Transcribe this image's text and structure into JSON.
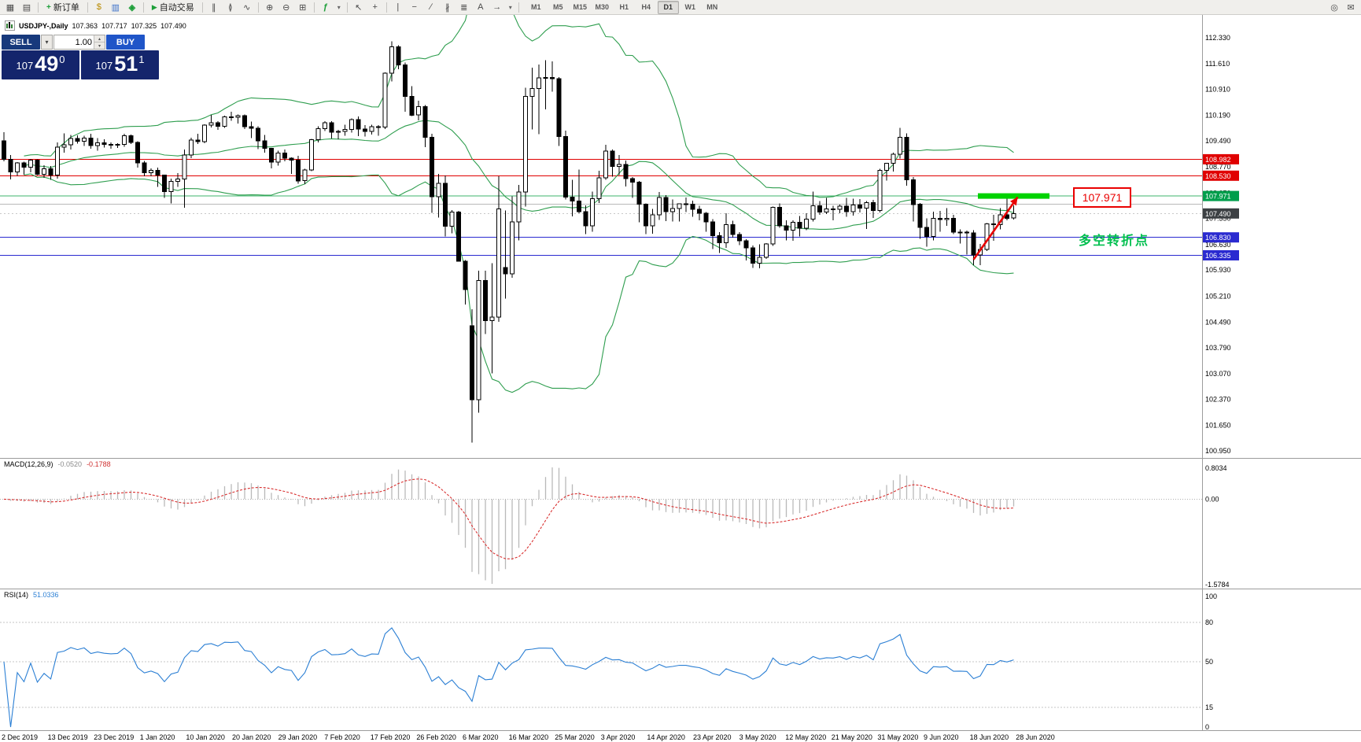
{
  "toolbar": {
    "new_order_label": "新订单",
    "autotrading_label": "自动交易",
    "timeframes": [
      "M1",
      "M5",
      "M15",
      "M30",
      "H1",
      "H4",
      "D1",
      "W1",
      "MN"
    ],
    "active_timeframe": "D1",
    "icons": {
      "new_chart": "▦",
      "profiles": "▤",
      "new_order_plus": "+",
      "market_watch": "$",
      "data_window": "▥",
      "navigator": "◈",
      "autotrading_play": "▶",
      "bar_chart": "∥",
      "candle_chart": "≬",
      "line_chart": "∿",
      "zoom_in": "⊕",
      "zoom_out": "⊖",
      "tile_windows": "⊞",
      "indicators": "ƒ",
      "caret": "▾",
      "cursor": "↖",
      "crosshair": "+",
      "vertical_line": "|",
      "horizontal_line": "−",
      "trendline": "∕",
      "channel": "∦",
      "fibonacci": "≣",
      "text": "A",
      "arrows": "→",
      "search": "◎",
      "feedback": "✉",
      "spin_up": "▴",
      "spin_down": "▾"
    }
  },
  "chart_header": {
    "symbol": "USDJPY-,Daily",
    "open": "107.363",
    "high": "107.717",
    "low": "107.325",
    "close": "107.490"
  },
  "trade_panel": {
    "sell_label": "SELL",
    "buy_label": "BUY",
    "lot_value": "1.00",
    "sell_price": {
      "small": "107",
      "big": "49",
      "sup": "0"
    },
    "buy_price": {
      "small": "107",
      "big": "51",
      "sup": "1"
    }
  },
  "indicator_labels": {
    "macd_name": "MACD(12,26,9)",
    "macd_main": "-0.0520",
    "macd_signal": "-0.1788",
    "rsi_name": "RSI(14)",
    "rsi_value": "51.0336"
  },
  "annotations": {
    "level_box_label": "107.971",
    "turning_point_text": "多空转折点"
  },
  "colors": {
    "bollinger": "#2f9e4f",
    "candle_up_fill": "#ffffff",
    "candle_down_fill": "#000000",
    "candle_border": "#000000",
    "macd_hist": "#b9b9b9",
    "macd_signal": "#d93030",
    "rsi_line": "#2b7fd4",
    "green_zone": "#00d300",
    "arrow": "#e80000",
    "axis_text": "#000000",
    "separator": "#9c9c9c"
  },
  "chart_data": {
    "type": "candlestick",
    "symbol": "USDJPY",
    "timeframe": "Daily",
    "indicators": [
      "Bollinger Bands",
      "MACD(12,26,9)",
      "RSI(14)"
    ],
    "price_axis_ticks": [
      112.33,
      111.61,
      110.91,
      110.19,
      109.49,
      108.77,
      108.05,
      107.35,
      106.63,
      105.93,
      105.21,
      104.49,
      103.79,
      103.07,
      102.37,
      101.65,
      100.95
    ],
    "levels": [
      {
        "price": 108.982,
        "color": "#e00000",
        "style": "solid",
        "badge": "108.982",
        "badge_color": "#e00000"
      },
      {
        "price": 108.53,
        "color": "#e00000",
        "style": "solid",
        "badge": "108.530",
        "badge_color": "#e00000"
      },
      {
        "price": 107.971,
        "color": "#3db56b",
        "style": "solid",
        "badge": "107.971",
        "badge_color": "#009e4c"
      },
      {
        "price": 107.75,
        "color": "#b8b8b8",
        "style": "solid",
        "badge": null,
        "badge_color": null
      },
      {
        "price": 107.49,
        "color": "#c8c8c8",
        "style": "dot",
        "badge": "107.490",
        "badge_color": "#3c4043"
      },
      {
        "price": 106.83,
        "color": "#2a2ad0",
        "style": "solid",
        "badge": "106.830",
        "badge_color": "#2a2ad0"
      },
      {
        "price": 106.335,
        "color": "#2a2ad0",
        "style": "solid",
        "badge": "106.335",
        "badge_color": "#2a2ad0"
      }
    ],
    "green_zone": {
      "from_index": 146,
      "to_index": 156,
      "price": 107.971
    },
    "red_arrow": {
      "from_index": 145,
      "from_price": 106.22,
      "to_index": 151.6,
      "to_price": 107.94
    },
    "macd_axis": {
      "top": "0.8034",
      "zero": "0.00",
      "bottom": "-1.5784"
    },
    "rsi_axis": {
      "ticks": [
        {
          "value": 100,
          "label": "100"
        },
        {
          "value": 80,
          "label": "80"
        },
        {
          "value": 50,
          "label": "50"
        },
        {
          "value": 15,
          "label": "15"
        },
        {
          "value": 0,
          "label": "0"
        }
      ],
      "levels": [
        80,
        50,
        15
      ]
    },
    "date_labels": [
      {
        "i": 0,
        "t": "2 Dec 2019"
      },
      {
        "i": 9,
        "t": "13 Dec 2019"
      },
      {
        "i": 15,
        "t": "23 Dec 2019"
      },
      {
        "i": 22,
        "t": "1 Jan 2020"
      },
      {
        "i": 29,
        "t": "10 Jan 2020"
      },
      {
        "i": 35,
        "t": "20 Jan 2020"
      },
      {
        "i": 42,
        "t": "29 Jan 2020"
      },
      {
        "i": 49,
        "t": "7 Feb 2020"
      },
      {
        "i": 55,
        "t": "17 Feb 2020"
      },
      {
        "i": 62,
        "t": "26 Feb 2020"
      },
      {
        "i": 69,
        "t": "6 Mar 2020"
      },
      {
        "i": 75,
        "t": "16 Mar 2020"
      },
      {
        "i": 82,
        "t": "25 Mar 2020"
      },
      {
        "i": 89,
        "t": "3 Apr 2020"
      },
      {
        "i": 96,
        "t": "14 Apr 2020"
      },
      {
        "i": 103,
        "t": "23 Apr 2020"
      },
      {
        "i": 110,
        "t": "3 May 2020"
      },
      {
        "i": 116,
        "t": "12 May 2020"
      },
      {
        "i": 123,
        "t": "21 May 2020"
      },
      {
        "i": 130,
        "t": "31 May 2020"
      },
      {
        "i": 136,
        "t": "9 Jun 2020"
      },
      {
        "i": 143,
        "t": "18 Jun 2020"
      },
      {
        "i": 150,
        "t": "28 Jun 2020"
      }
    ],
    "candles": [
      [
        109.49,
        109.73,
        108.93,
        108.98
      ],
      [
        108.98,
        109.1,
        108.43,
        108.63
      ],
      [
        108.63,
        108.91,
        108.53,
        108.88
      ],
      [
        108.88,
        108.92,
        108.56,
        108.76
      ],
      [
        108.76,
        108.99,
        108.62,
        108.96
      ],
      [
        108.96,
        108.98,
        108.55,
        108.57
      ],
      [
        108.57,
        108.82,
        108.47,
        108.72
      ],
      [
        108.72,
        108.8,
        108.42,
        108.55
      ],
      [
        108.55,
        109.45,
        108.45,
        109.32
      ],
      [
        109.32,
        109.7,
        109.16,
        109.38
      ],
      [
        109.38,
        109.65,
        109.25,
        109.55
      ],
      [
        109.55,
        109.64,
        109.41,
        109.48
      ],
      [
        109.48,
        109.63,
        109.35,
        109.57
      ],
      [
        109.57,
        109.68,
        109.27,
        109.36
      ],
      [
        109.36,
        109.57,
        109.22,
        109.44
      ],
      [
        109.44,
        109.53,
        109.31,
        109.39
      ],
      [
        109.39,
        109.45,
        109.27,
        109.37
      ],
      [
        109.37,
        109.43,
        109.3,
        109.39
      ],
      [
        109.39,
        109.68,
        109.33,
        109.63
      ],
      [
        109.63,
        109.66,
        109.4,
        109.45
      ],
      [
        109.45,
        109.48,
        108.75,
        108.88
      ],
      [
        108.88,
        108.94,
        108.51,
        108.61
      ],
      [
        108.61,
        108.73,
        108.52,
        108.68
      ],
      [
        108.68,
        108.75,
        108.22,
        108.55
      ],
      [
        108.55,
        108.56,
        107.92,
        108.09
      ],
      [
        108.09,
        108.45,
        107.77,
        108.37
      ],
      [
        108.37,
        108.6,
        108.22,
        108.44
      ],
      [
        108.44,
        109.25,
        107.65,
        109.1
      ],
      [
        109.1,
        109.58,
        109.01,
        109.51
      ],
      [
        109.51,
        109.69,
        109.4,
        109.47
      ],
      [
        109.47,
        109.95,
        109.43,
        109.92
      ],
      [
        109.92,
        110.21,
        109.86,
        109.99
      ],
      [
        109.99,
        110.03,
        109.79,
        109.89
      ],
      [
        109.89,
        110.18,
        109.85,
        110.15
      ],
      [
        110.15,
        110.29,
        110.04,
        110.14
      ],
      [
        110.14,
        110.22,
        109.97,
        110.18
      ],
      [
        110.18,
        110.22,
        109.82,
        109.88
      ],
      [
        109.88,
        110.02,
        109.57,
        109.84
      ],
      [
        109.84,
        109.89,
        109.26,
        109.49
      ],
      [
        109.49,
        109.65,
        109.17,
        109.28
      ],
      [
        109.28,
        109.29,
        108.73,
        108.9
      ],
      [
        108.9,
        109.22,
        108.81,
        109.15
      ],
      [
        109.15,
        109.25,
        108.93,
        109.01
      ],
      [
        109.01,
        109.03,
        108.58,
        108.96
      ],
      [
        108.96,
        109.08,
        108.31,
        108.39
      ],
      [
        108.39,
        108.72,
        108.3,
        108.69
      ],
      [
        108.69,
        109.54,
        108.66,
        109.52
      ],
      [
        109.52,
        109.89,
        109.45,
        109.83
      ],
      [
        109.83,
        110.03,
        109.76,
        109.99
      ],
      [
        109.99,
        110.03,
        109.55,
        109.73
      ],
      [
        109.73,
        109.79,
        109.53,
        109.75
      ],
      [
        109.75,
        109.94,
        109.63,
        109.8
      ],
      [
        109.8,
        110.11,
        109.72,
        110.08
      ],
      [
        110.08,
        110.16,
        109.62,
        109.82
      ],
      [
        109.82,
        109.92,
        109.61,
        109.75
      ],
      [
        109.75,
        109.93,
        109.66,
        109.88
      ],
      [
        109.88,
        109.92,
        109.63,
        109.87
      ],
      [
        109.87,
        111.38,
        109.82,
        111.35
      ],
      [
        111.35,
        112.23,
        111.13,
        112.08
      ],
      [
        112.08,
        112.12,
        111.46,
        111.58
      ],
      [
        111.58,
        111.65,
        110.29,
        110.72
      ],
      [
        110.72,
        111.0,
        110.17,
        110.2
      ],
      [
        110.2,
        110.6,
        110.05,
        110.43
      ],
      [
        110.43,
        110.48,
        109.32,
        109.59
      ],
      [
        109.59,
        109.69,
        107.51,
        107.95
      ],
      [
        107.95,
        108.58,
        107.38,
        108.32
      ],
      [
        108.32,
        108.54,
        106.86,
        107.14
      ],
      [
        107.14,
        107.58,
        106.94,
        107.53
      ],
      [
        107.53,
        107.56,
        106.16,
        106.17
      ],
      [
        106.17,
        106.21,
        104.98,
        105.39
      ],
      [
        104.4,
        104.85,
        101.18,
        102.36
      ],
      [
        102.36,
        105.91,
        102.0,
        105.64
      ],
      [
        105.64,
        105.91,
        104.17,
        104.54
      ],
      [
        104.54,
        106.12,
        103.08,
        104.63
      ],
      [
        104.63,
        108.51,
        104.5,
        107.62
      ],
      [
        106.0,
        107.57,
        105.14,
        105.83
      ],
      [
        105.83,
        107.96,
        105.72,
        107.26
      ],
      [
        107.26,
        108.28,
        106.75,
        108.08
      ],
      [
        108.08,
        110.95,
        107.68,
        110.71
      ],
      [
        110.71,
        111.51,
        109.8,
        110.93
      ],
      [
        110.93,
        111.59,
        109.67,
        111.22
      ],
      [
        111.22,
        111.71,
        110.36,
        111.23
      ],
      [
        111.23,
        111.68,
        110.84,
        111.2
      ],
      [
        111.2,
        111.25,
        109.35,
        109.61
      ],
      [
        109.61,
        109.77,
        107.87,
        107.94
      ],
      [
        107.94,
        108.42,
        107.41,
        107.83
      ],
      [
        107.83,
        108.7,
        107.5,
        107.54
      ],
      [
        107.54,
        107.71,
        106.92,
        107.15
      ],
      [
        107.15,
        108.09,
        106.99,
        107.9
      ],
      [
        107.9,
        108.67,
        107.78,
        108.47
      ],
      [
        108.47,
        109.38,
        108.42,
        109.21
      ],
      [
        109.21,
        109.25,
        108.5,
        108.79
      ],
      [
        108.79,
        109.1,
        108.55,
        108.84
      ],
      [
        108.84,
        108.95,
        108.23,
        108.45
      ],
      [
        108.45,
        108.49,
        107.92,
        108.35
      ],
      [
        108.35,
        108.39,
        107.25,
        107.74
      ],
      [
        107.74,
        107.77,
        106.92,
        107.15
      ],
      [
        107.15,
        107.62,
        106.93,
        107.45
      ],
      [
        107.45,
        108.08,
        107.31,
        107.93
      ],
      [
        107.93,
        107.99,
        107.28,
        107.54
      ],
      [
        107.54,
        107.88,
        107.27,
        107.63
      ],
      [
        107.63,
        107.77,
        107.27,
        107.76
      ],
      [
        107.76,
        107.93,
        107.53,
        107.75
      ],
      [
        107.75,
        107.84,
        107.4,
        107.6
      ],
      [
        107.6,
        107.7,
        107.3,
        107.5
      ],
      [
        107.5,
        107.53,
        106.99,
        107.26
      ],
      [
        107.26,
        107.33,
        106.51,
        106.88
      ],
      [
        106.88,
        106.98,
        106.4,
        106.68
      ],
      [
        106.68,
        107.5,
        106.54,
        107.18
      ],
      [
        107.18,
        107.29,
        106.82,
        106.91
      ],
      [
        106.91,
        106.98,
        106.62,
        106.74
      ],
      [
        106.74,
        106.78,
        106.2,
        106.54
      ],
      [
        106.54,
        106.61,
        105.99,
        106.12
      ],
      [
        106.12,
        106.64,
        105.98,
        106.28
      ],
      [
        106.28,
        106.67,
        106.24,
        106.65
      ],
      [
        106.65,
        107.68,
        106.6,
        107.66
      ],
      [
        107.66,
        107.77,
        107.1,
        107.15
      ],
      [
        107.15,
        107.3,
        106.75,
        107.03
      ],
      [
        107.03,
        107.3,
        106.74,
        107.25
      ],
      [
        107.25,
        107.42,
        106.86,
        107.08
      ],
      [
        107.08,
        107.5,
        107.03,
        107.33
      ],
      [
        107.33,
        108.09,
        107.27,
        107.7
      ],
      [
        107.7,
        107.83,
        107.45,
        107.53
      ],
      [
        107.53,
        107.92,
        107.47,
        107.62
      ],
      [
        107.62,
        107.7,
        107.3,
        107.6
      ],
      [
        107.6,
        107.73,
        107.5,
        107.69
      ],
      [
        107.69,
        107.92,
        107.4,
        107.54
      ],
      [
        107.54,
        107.9,
        107.43,
        107.72
      ],
      [
        107.72,
        107.89,
        107.52,
        107.64
      ],
      [
        107.64,
        107.83,
        107.06,
        107.79
      ],
      [
        107.79,
        107.86,
        107.37,
        107.57
      ],
      [
        107.57,
        108.72,
        107.52,
        108.68
      ],
      [
        108.68,
        108.88,
        108.4,
        108.87
      ],
      [
        108.87,
        109.16,
        108.65,
        109.12
      ],
      [
        109.12,
        109.85,
        109.0,
        109.59
      ],
      [
        109.59,
        109.7,
        108.25,
        108.42
      ],
      [
        108.42,
        108.49,
        107.27,
        107.74
      ],
      [
        107.74,
        107.78,
        106.79,
        107.11
      ],
      [
        107.11,
        107.35,
        106.57,
        106.86
      ],
      [
        106.86,
        107.54,
        106.75,
        107.36
      ],
      [
        107.36,
        107.56,
        106.99,
        107.32
      ],
      [
        107.32,
        107.64,
        107.15,
        107.35
      ],
      [
        107.35,
        107.45,
        106.92,
        106.97
      ],
      [
        106.97,
        107.05,
        106.66,
        106.98
      ],
      [
        106.98,
        107.02,
        106.36,
        106.95
      ],
      [
        106.95,
        107.03,
        106.06,
        106.35
      ],
      [
        106.35,
        106.65,
        106.07,
        106.5
      ],
      [
        106.5,
        107.23,
        106.46,
        107.2
      ],
      [
        107.2,
        107.45,
        106.74,
        107.18
      ],
      [
        107.18,
        107.64,
        107.05,
        107.45
      ],
      [
        107.45,
        107.97,
        107.3,
        107.36
      ],
      [
        107.363,
        107.717,
        107.325,
        107.49
      ]
    ]
  }
}
